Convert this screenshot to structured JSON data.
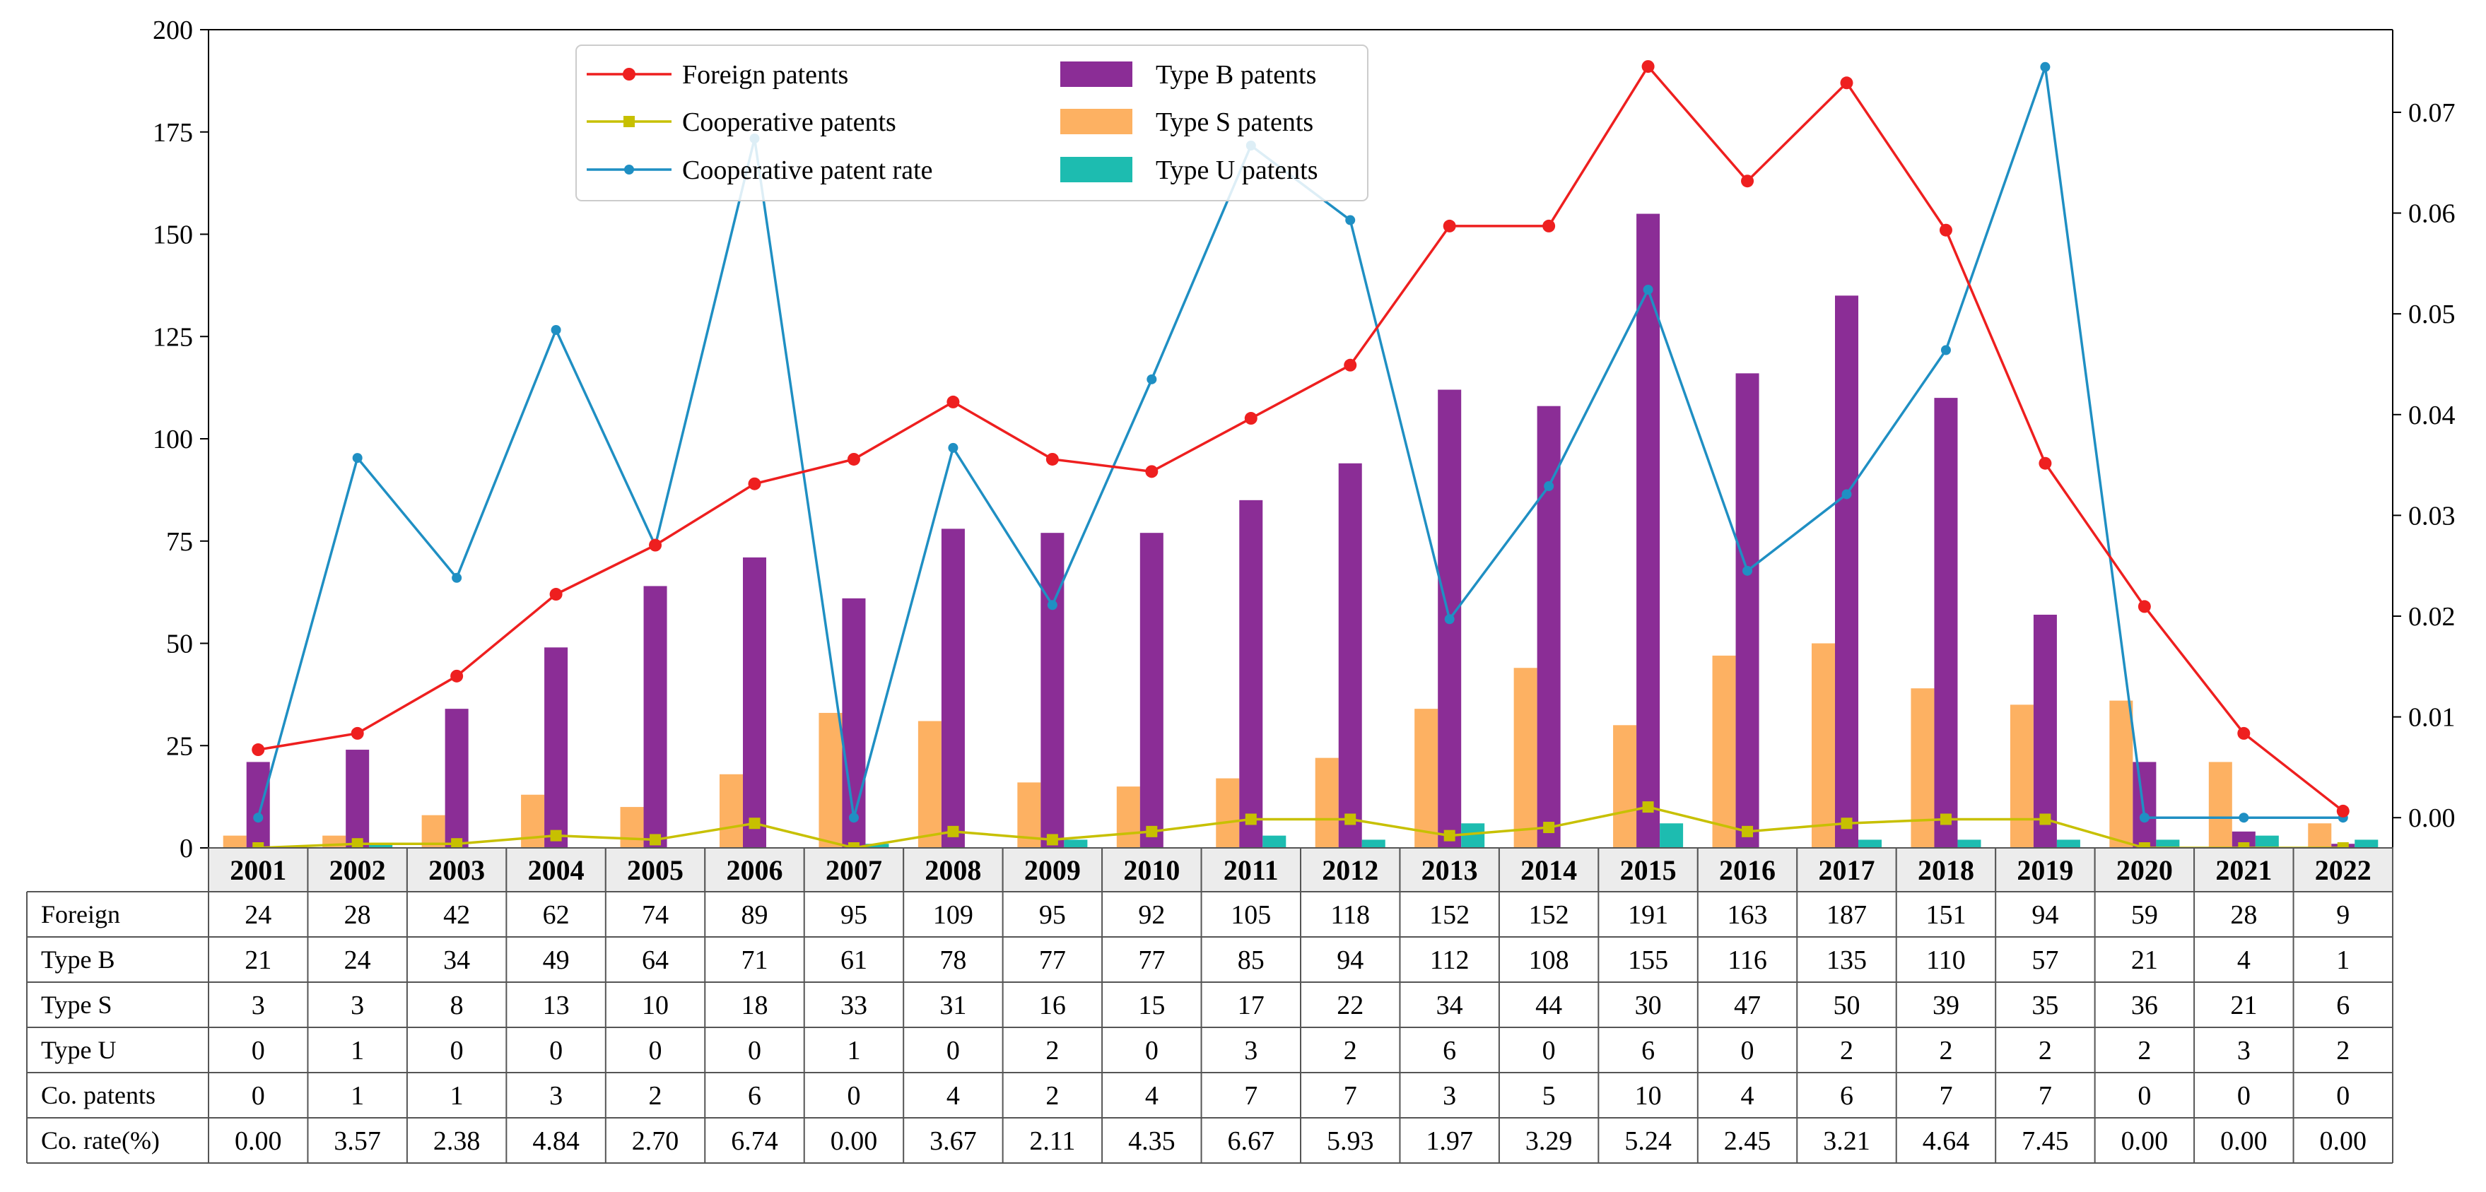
{
  "colors": {
    "foreign": "#ee1f1f",
    "type_b": "#8b2d96",
    "type_s": "#fdb162",
    "type_u": "#1dbcb0",
    "cooperative": "#c7c000",
    "rate": "#1f8fc3",
    "header_bg": "#ececec",
    "axis": "#000000",
    "border": "#555555"
  },
  "chart_data": {
    "type": "bar",
    "categories": [
      "2001",
      "2002",
      "2003",
      "2004",
      "2005",
      "2006",
      "2007",
      "2008",
      "2009",
      "2010",
      "2011",
      "2012",
      "2013",
      "2014",
      "2015",
      "2016",
      "2017",
      "2018",
      "2019",
      "2020",
      "2021",
      "2022"
    ],
    "series": [
      {
        "key": "foreign",
        "name": "Foreign patents",
        "kind": "line",
        "axis": "left",
        "values": [
          24,
          28,
          42,
          62,
          74,
          89,
          95,
          109,
          95,
          92,
          105,
          118,
          152,
          152,
          191,
          163,
          187,
          151,
          94,
          59,
          28,
          9
        ]
      },
      {
        "key": "cooperative",
        "name": "Cooperative patents",
        "kind": "line",
        "axis": "left",
        "values": [
          0,
          1,
          1,
          3,
          2,
          6,
          0,
          4,
          2,
          4,
          7,
          7,
          3,
          5,
          10,
          4,
          6,
          7,
          7,
          0,
          0,
          0
        ]
      },
      {
        "key": "rate",
        "name": "Cooperative patent rate",
        "kind": "line",
        "axis": "right",
        "values": [
          0.0,
          0.0357,
          0.0238,
          0.0484,
          0.027,
          0.0674,
          0.0,
          0.0367,
          0.0211,
          0.0435,
          0.0667,
          0.0593,
          0.0197,
          0.0329,
          0.0524,
          0.0245,
          0.0321,
          0.0464,
          0.0745,
          0.0,
          0.0,
          0.0
        ]
      },
      {
        "key": "type_b",
        "name": "Type B patents",
        "kind": "bar",
        "axis": "left",
        "values": [
          21,
          24,
          34,
          49,
          64,
          71,
          61,
          78,
          77,
          77,
          85,
          94,
          112,
          108,
          155,
          116,
          135,
          110,
          57,
          21,
          4,
          1
        ]
      },
      {
        "key": "type_s",
        "name": "Type S patents",
        "kind": "bar",
        "axis": "left",
        "values": [
          3,
          3,
          8,
          13,
          10,
          18,
          33,
          31,
          16,
          15,
          17,
          22,
          34,
          44,
          30,
          47,
          50,
          39,
          35,
          36,
          21,
          6
        ]
      },
      {
        "key": "type_u",
        "name": "Type U patents",
        "kind": "bar",
        "axis": "left",
        "values": [
          0,
          1,
          0,
          0,
          0,
          0,
          1,
          0,
          2,
          0,
          3,
          2,
          6,
          0,
          6,
          0,
          2,
          2,
          2,
          2,
          3,
          2
        ]
      }
    ],
    "ylim": [
      0,
      200
    ],
    "y_ticks": [
      "0",
      "25",
      "50",
      "75",
      "100",
      "125",
      "150",
      "175",
      "200"
    ],
    "y2lim": [
      -0.003,
      0.0782
    ],
    "y2_ticks": [
      "0.00",
      "0.01",
      "0.02",
      "0.03",
      "0.04",
      "0.05",
      "0.06",
      "0.07"
    ],
    "legend_position": "top-center",
    "grid": false,
    "table": {
      "rows": [
        {
          "label": "Foreign",
          "values": [
            "24",
            "28",
            "42",
            "62",
            "74",
            "89",
            "95",
            "109",
            "95",
            "92",
            "105",
            "118",
            "152",
            "152",
            "191",
            "163",
            "187",
            "151",
            "94",
            "59",
            "28",
            "9"
          ]
        },
        {
          "label": "Type B",
          "values": [
            "21",
            "24",
            "34",
            "49",
            "64",
            "71",
            "61",
            "78",
            "77",
            "77",
            "85",
            "94",
            "112",
            "108",
            "155",
            "116",
            "135",
            "110",
            "57",
            "21",
            "4",
            "1"
          ]
        },
        {
          "label": "Type S",
          "values": [
            "3",
            "3",
            "8",
            "13",
            "10",
            "18",
            "33",
            "31",
            "16",
            "15",
            "17",
            "22",
            "34",
            "44",
            "30",
            "47",
            "50",
            "39",
            "35",
            "36",
            "21",
            "6"
          ]
        },
        {
          "label": "Type U",
          "values": [
            "0",
            "1",
            "0",
            "0",
            "0",
            "0",
            "1",
            "0",
            "2",
            "0",
            "3",
            "2",
            "6",
            "0",
            "6",
            "0",
            "2",
            "2",
            "2",
            "2",
            "3",
            "2"
          ]
        },
        {
          "label": "Co. patents",
          "values": [
            "0",
            "1",
            "1",
            "3",
            "2",
            "6",
            "0",
            "4",
            "2",
            "4",
            "7",
            "7",
            "3",
            "5",
            "10",
            "4",
            "6",
            "7",
            "7",
            "0",
            "0",
            "0"
          ]
        },
        {
          "label": "Co. rate(%)",
          "values": [
            "0.00",
            "3.57",
            "2.38",
            "4.84",
            "2.70",
            "6.74",
            "0.00",
            "3.67",
            "2.11",
            "4.35",
            "6.67",
            "5.93",
            "1.97",
            "3.29",
            "5.24",
            "2.45",
            "3.21",
            "4.64",
            "7.45",
            "0.00",
            "0.00",
            "0.00"
          ]
        }
      ]
    }
  }
}
